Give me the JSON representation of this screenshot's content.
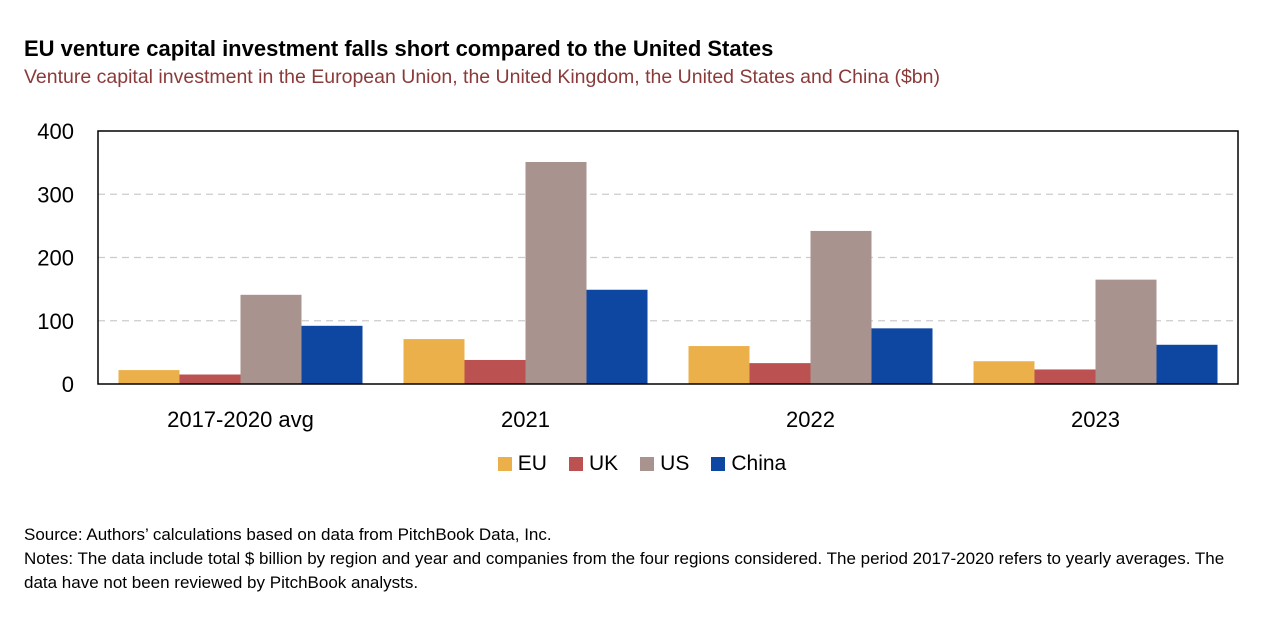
{
  "title": "EU venture capital investment falls short compared to the United States",
  "subtitle": "Venture capital investment in the European Union, the United Kingdom, the United States and China ($bn)",
  "source": "Source: Authors’ calculations based on data from PitchBook Data, Inc.",
  "notes": "Notes: The data include total $ billion by region and year and companies from the four regions considered. The period 2017-2020 refers to yearly averages. The data have not been reviewed by PitchBook analysts.",
  "chart_data": {
    "type": "bar",
    "categories": [
      "2017-2020 avg",
      "2021",
      "2022",
      "2023"
    ],
    "series": [
      {
        "name": "EU",
        "color": "#EBB04A",
        "values": [
          22,
          71,
          60,
          36
        ]
      },
      {
        "name": "UK",
        "color": "#BC5151",
        "values": [
          15,
          38,
          33,
          23
        ]
      },
      {
        "name": "US",
        "color": "#A9938F",
        "values": [
          141,
          351,
          242,
          165
        ]
      },
      {
        "name": "China",
        "color": "#0D47A1",
        "values": [
          92,
          149,
          88,
          62
        ]
      }
    ],
    "ylim": [
      0,
      400
    ],
    "yticks": [
      0,
      100,
      200,
      300,
      400
    ],
    "grid": true,
    "legend_position": "bottom"
  }
}
